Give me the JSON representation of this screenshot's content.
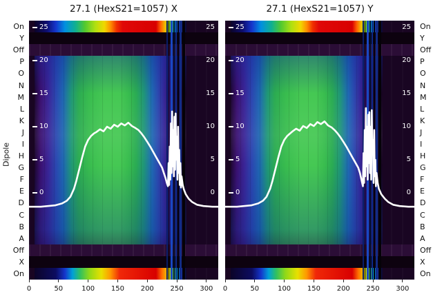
{
  "axis": {
    "ylabel": "Dipole",
    "row_labels": [
      "On",
      "Y",
      "Off",
      "P",
      "O",
      "N",
      "M",
      "L",
      "K",
      "J",
      "I",
      "H",
      "G",
      "F",
      "E",
      "D",
      "C",
      "B",
      "A",
      "Off",
      "X",
      "On"
    ],
    "x_ticks": [
      0,
      50,
      100,
      150,
      200,
      250,
      300
    ],
    "inner_ticks": [
      25,
      20,
      15,
      10,
      5,
      0
    ]
  },
  "palette": {
    "page_background": "#ffffff",
    "heatmap_background": "#190522",
    "off_row_band": "#2b0d36",
    "green_core": "#45c853",
    "blue_edge": "#2b46b0",
    "purple_edge": "#3a1070",
    "jet_red": "#d80000",
    "jet_yellow": "#f0d800",
    "dropout_blue": "#1848c2",
    "curve": "#ffffff",
    "text": "#111111"
  },
  "chart_data": [
    {
      "type": "heatmap",
      "title": "27.1 (HexS21=1057) X",
      "x_range": [
        0,
        320
      ],
      "x_ticks": [
        0,
        50,
        100,
        150,
        200,
        250,
        300
      ],
      "rows_top_to_bottom": [
        "On",
        "Y",
        "Off",
        "P",
        "O",
        "N",
        "M",
        "L",
        "K",
        "J",
        "I",
        "H",
        "G",
        "F",
        "E",
        "D",
        "C",
        "B",
        "A",
        "Off",
        "X",
        "On"
      ],
      "value_ticks": [
        25,
        20,
        15,
        10,
        5,
        0
      ],
      "colormap_note": "jet-like: dark purple field; bright green core over x~55-225 fading through blue to purple for dipole rows P-A; rainbow On calibration rows top and bottom peaking red near x~130-230; blue/dark dropout stripes near x~235-262",
      "overlay_line": {
        "color": "#ffffff",
        "points": [
          [
            0,
            -2.1
          ],
          [
            20,
            -2.1
          ],
          [
            44,
            -1.9
          ],
          [
            56,
            -1.6
          ],
          [
            64,
            -1.2
          ],
          [
            70,
            -0.6
          ],
          [
            76,
            0.6
          ],
          [
            80,
            1.8
          ],
          [
            85,
            3.6
          ],
          [
            90,
            5.4
          ],
          [
            95,
            7.0
          ],
          [
            100,
            8.0
          ],
          [
            105,
            8.6
          ],
          [
            110,
            9.0
          ],
          [
            114,
            9.2
          ],
          [
            120,
            9.6
          ],
          [
            126,
            9.3
          ],
          [
            132,
            10.0
          ],
          [
            138,
            9.7
          ],
          [
            144,
            10.3
          ],
          [
            150,
            10.0
          ],
          [
            156,
            10.5
          ],
          [
            162,
            10.2
          ],
          [
            168,
            10.6
          ],
          [
            174,
            10.1
          ],
          [
            180,
            9.8
          ],
          [
            185,
            9.5
          ],
          [
            190,
            9.0
          ],
          [
            195,
            8.4
          ],
          [
            200,
            7.7
          ],
          [
            205,
            7.0
          ],
          [
            210,
            6.2
          ],
          [
            215,
            5.4
          ],
          [
            220,
            4.6
          ],
          [
            225,
            3.8
          ],
          [
            228,
            3.0
          ],
          [
            231,
            2.2
          ],
          [
            233,
            1.5
          ],
          [
            235,
            1.0
          ],
          [
            236,
            4.5
          ],
          [
            237,
            1.2
          ],
          [
            238,
            7.0
          ],
          [
            239,
            2.0
          ],
          [
            240,
            10.5
          ],
          [
            241,
            3.0
          ],
          [
            242,
            12.3
          ],
          [
            243,
            4.0
          ],
          [
            244,
            9.5
          ],
          [
            245,
            2.5
          ],
          [
            246,
            11.5
          ],
          [
            247,
            3.5
          ],
          [
            248,
            12.0
          ],
          [
            249,
            5.0
          ],
          [
            250,
            8.5
          ],
          [
            251,
            2.0
          ],
          [
            252,
            10.0
          ],
          [
            253,
            3.0
          ],
          [
            254,
            6.5
          ],
          [
            255,
            1.2
          ],
          [
            256,
            4.5
          ],
          [
            257,
            0.8
          ],
          [
            258,
            2.5
          ],
          [
            260,
            1.2
          ],
          [
            262,
            0.5
          ],
          [
            265,
            -0.2
          ],
          [
            270,
            -0.9
          ],
          [
            276,
            -1.4
          ],
          [
            284,
            -1.8
          ],
          [
            295,
            -2.0
          ],
          [
            310,
            -2.1
          ],
          [
            320,
            -2.1
          ]
        ]
      }
    },
    {
      "type": "heatmap",
      "title": "27.1 (HexS21=1057) Y",
      "x_range": [
        0,
        320
      ],
      "x_ticks": [
        0,
        50,
        100,
        150,
        200,
        250,
        300
      ],
      "rows_top_to_bottom": [
        "On",
        "Y",
        "Off",
        "P",
        "O",
        "N",
        "M",
        "L",
        "K",
        "J",
        "I",
        "H",
        "G",
        "F",
        "E",
        "D",
        "C",
        "B",
        "A",
        "Off",
        "X",
        "On"
      ],
      "value_ticks": [
        25,
        20,
        15,
        10,
        5,
        0
      ],
      "colormap_note": "jet-like: dark purple field; bright green core over x~55-225 fading through blue to purple for dipole rows P-A; rainbow On calibration rows top and bottom peaking red near x~130-230; blue/dark dropout stripes near x~235-262",
      "overlay_line": {
        "color": "#ffffff",
        "points": [
          [
            0,
            -2.1
          ],
          [
            20,
            -2.1
          ],
          [
            44,
            -1.9
          ],
          [
            56,
            -1.6
          ],
          [
            64,
            -1.2
          ],
          [
            70,
            -0.6
          ],
          [
            76,
            0.6
          ],
          [
            80,
            1.8
          ],
          [
            85,
            3.6
          ],
          [
            90,
            5.4
          ],
          [
            95,
            7.0
          ],
          [
            100,
            8.0
          ],
          [
            105,
            8.6
          ],
          [
            110,
            9.0
          ],
          [
            114,
            9.3
          ],
          [
            120,
            9.7
          ],
          [
            126,
            9.4
          ],
          [
            132,
            10.1
          ],
          [
            138,
            9.8
          ],
          [
            144,
            10.4
          ],
          [
            150,
            10.1
          ],
          [
            156,
            10.7
          ],
          [
            162,
            10.4
          ],
          [
            168,
            10.8
          ],
          [
            174,
            10.2
          ],
          [
            180,
            9.9
          ],
          [
            185,
            9.5
          ],
          [
            190,
            9.0
          ],
          [
            195,
            8.4
          ],
          [
            200,
            7.7
          ],
          [
            205,
            7.0
          ],
          [
            210,
            6.2
          ],
          [
            215,
            5.4
          ],
          [
            220,
            4.6
          ],
          [
            225,
            3.8
          ],
          [
            228,
            3.0
          ],
          [
            230,
            2.2
          ],
          [
            232,
            1.4
          ],
          [
            233,
            1.0
          ],
          [
            234,
            6.0
          ],
          [
            235,
            1.5
          ],
          [
            236,
            9.5
          ],
          [
            237,
            2.5
          ],
          [
            238,
            12.8
          ],
          [
            239,
            4.0
          ],
          [
            240,
            10.0
          ],
          [
            241,
            2.0
          ],
          [
            242,
            11.8
          ],
          [
            243,
            4.5
          ],
          [
            244,
            12.2
          ],
          [
            245,
            3.0
          ],
          [
            246,
            10.0
          ],
          [
            247,
            2.0
          ],
          [
            248,
            12.5
          ],
          [
            249,
            6.0
          ],
          [
            250,
            8.0
          ],
          [
            251,
            1.5
          ],
          [
            252,
            9.5
          ],
          [
            253,
            2.5
          ],
          [
            254,
            5.0
          ],
          [
            255,
            1.0
          ],
          [
            256,
            3.0
          ],
          [
            258,
            1.5
          ],
          [
            260,
            0.6
          ],
          [
            264,
            -0.2
          ],
          [
            270,
            -0.9
          ],
          [
            276,
            -1.4
          ],
          [
            284,
            -1.8
          ],
          [
            295,
            -2.0
          ],
          [
            310,
            -2.1
          ],
          [
            320,
            -2.1
          ]
        ]
      }
    }
  ]
}
